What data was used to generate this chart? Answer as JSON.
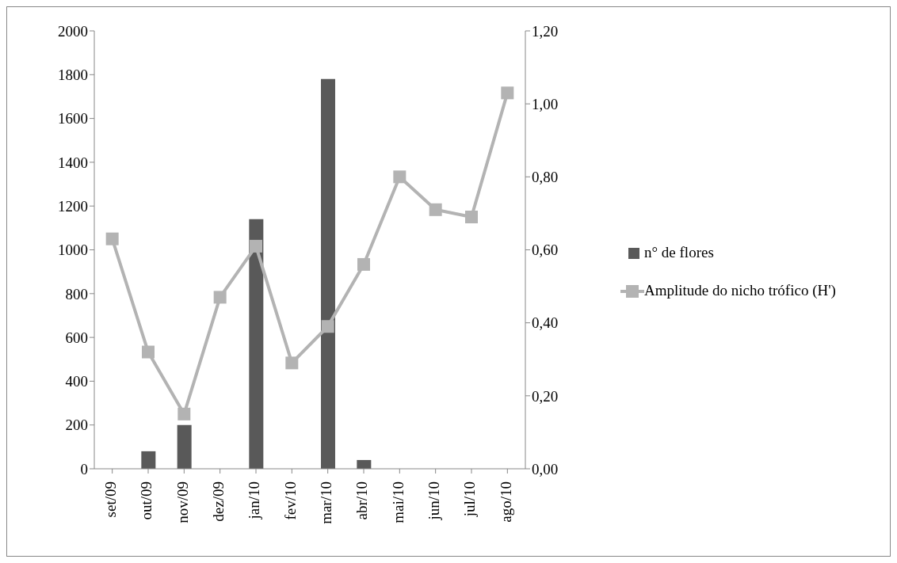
{
  "chart_data": {
    "type": "bar",
    "categories": [
      "set/09",
      "out/09",
      "nov/09",
      "dez/09",
      "jan/10",
      "fev/10",
      "mar/10",
      "abr/10",
      "mai/10",
      "jun/10",
      "jul/10",
      "ago/10"
    ],
    "series": [
      {
        "name": "n° de flores",
        "color": "#595959",
        "values": [
          0,
          80,
          200,
          0,
          1140,
          0,
          1780,
          40,
          0,
          0,
          0,
          0
        ]
      },
      {
        "name": "Amplitude do nicho trófico (H')",
        "type": "line",
        "axis": "y2",
        "color": "#b3b3b3",
        "marker": "square",
        "values": [
          0.63,
          0.32,
          0.15,
          0.47,
          0.61,
          0.29,
          0.39,
          0.56,
          0.8,
          0.71,
          0.69,
          1.03
        ]
      }
    ],
    "ylim": [
      0,
      2000
    ],
    "yticks": [
      0,
      200,
      400,
      600,
      800,
      1000,
      1200,
      1400,
      1600,
      1800,
      2000
    ],
    "y2lim": [
      0,
      1.2
    ],
    "y2ticks": [
      {
        "value": 0,
        "label": "0,00"
      },
      {
        "value": 0.2,
        "label": "0,20"
      },
      {
        "value": 0.4,
        "label": "0,40"
      },
      {
        "value": 0.6,
        "label": "0,60"
      },
      {
        "value": 0.8,
        "label": "0,80"
      },
      {
        "value": 1.0,
        "label": "1,00"
      },
      {
        "value": 1.2,
        "label": "1,20"
      }
    ],
    "grid": false,
    "legend": "right"
  }
}
